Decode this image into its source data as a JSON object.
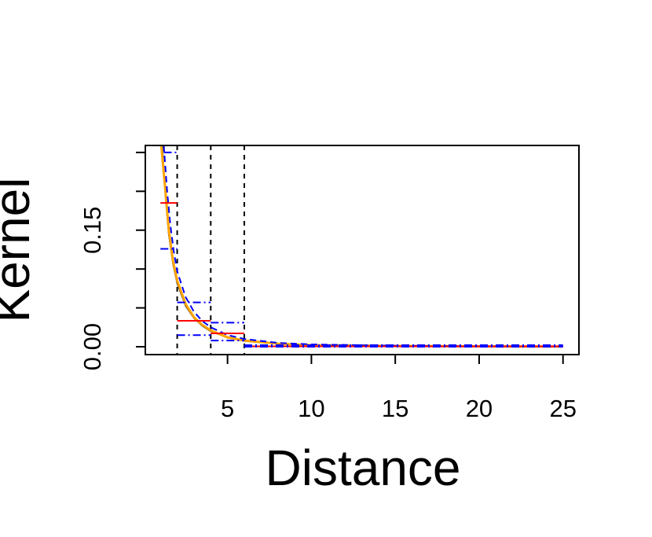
{
  "chart_data": {
    "type": "line",
    "xlabel": "Distance",
    "ylabel": "Kernel",
    "xlim": [
      0.1,
      25.95
    ],
    "ylim": [
      -0.0101,
      0.259
    ],
    "xticks": [
      5,
      10,
      15,
      20,
      25
    ],
    "yticks": [
      {
        "value": 0,
        "label": "0.00"
      },
      {
        "value": 0.15,
        "label": "0.15"
      }
    ],
    "yminor_ticks": [
      0.05,
      0.1,
      0.2,
      0.25
    ],
    "vlines": [
      2,
      4,
      6
    ],
    "series": [
      {
        "color": "#000000",
        "dash": "solid",
        "x": [
          1.1,
          1.3,
          1.5,
          1.75,
          2,
          2.5,
          3,
          3.5,
          4,
          5,
          6,
          8,
          10,
          15,
          20,
          25
        ],
        "values": [
          0.259,
          0.195,
          0.145,
          0.107,
          0.082,
          0.053,
          0.037,
          0.027,
          0.02,
          0.012,
          0.0075,
          0.0038,
          0.002,
          0.0009,
          0.0005,
          0.0003
        ]
      },
      {
        "color": "#ffa500",
        "dash": "solid",
        "x": [
          1.05,
          1.3,
          1.5,
          1.75,
          2,
          2.5,
          3,
          3.5,
          4,
          5,
          6,
          8,
          10,
          15,
          20,
          25
        ],
        "values": [
          0.259,
          0.2,
          0.15,
          0.11,
          0.085,
          0.055,
          0.038,
          0.028,
          0.021,
          0.012,
          0.008,
          0.004,
          0.002,
          0.001,
          0.0005,
          0.0003
        ]
      },
      {
        "color": "#0000ff",
        "dash": "dashed",
        "x": [
          1.2,
          1.4,
          1.6,
          1.8,
          2,
          2.5,
          3,
          3.5,
          4,
          5,
          6,
          8,
          10,
          15,
          20,
          25
        ],
        "values": [
          0.259,
          0.2,
          0.155,
          0.122,
          0.097,
          0.064,
          0.045,
          0.033,
          0.025,
          0.015,
          0.01,
          0.005,
          0.003,
          0.0013,
          0.0007,
          0.0004
        ]
      }
    ],
    "steps": [
      {
        "color": "#ff0000",
        "dash": "solid",
        "x_start": [
          1,
          2,
          4,
          6
        ],
        "x_end": [
          2,
          4,
          6,
          25
        ],
        "values": [
          0.185,
          0.0334,
          0.0172,
          0.0005
        ]
      },
      {
        "color": "#0000ff",
        "dash": "dashdot",
        "x_start": [
          1.2,
          2,
          4,
          6
        ],
        "x_end": [
          2,
          4,
          6,
          25
        ],
        "values": [
          0.25,
          0.057,
          0.031,
          0.002
        ]
      },
      {
        "color": "#0000ff",
        "dash": "dashdot",
        "x_start": [
          1,
          2,
          4,
          6
        ],
        "x_end": [
          2,
          4,
          6,
          25
        ],
        "values": [
          0.126,
          0.015,
          0.008,
          0.0
        ]
      }
    ]
  }
}
